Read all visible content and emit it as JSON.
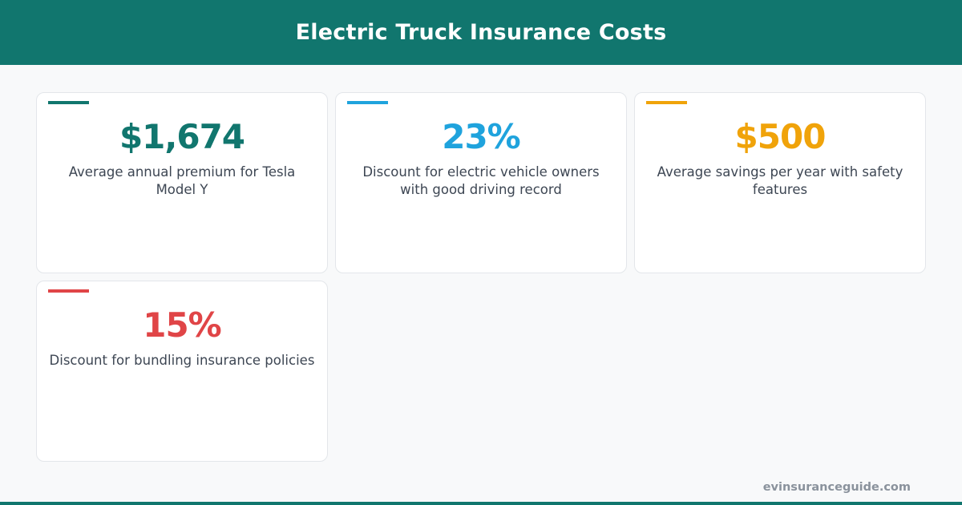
{
  "header": {
    "title": "Electric Truck Insurance Costs"
  },
  "cards": [
    {
      "value": "$1,674",
      "description": "Average annual premium for Tesla Model Y",
      "color": "#11766e"
    },
    {
      "value": "23%",
      "description": "Discount for electric vehicle owners with good driving record",
      "color": "#1fa3dd"
    },
    {
      "value": "$500",
      "description": "Average savings per year with safety features",
      "color": "#f0a30a"
    },
    {
      "value": "15%",
      "description": "Discount for bundling insurance policies",
      "color": "#e04547"
    }
  ],
  "footer": {
    "site": "evinsuranceguide.com"
  },
  "colors": {
    "brand": "#11766e",
    "background": "#f8f9fa"
  }
}
